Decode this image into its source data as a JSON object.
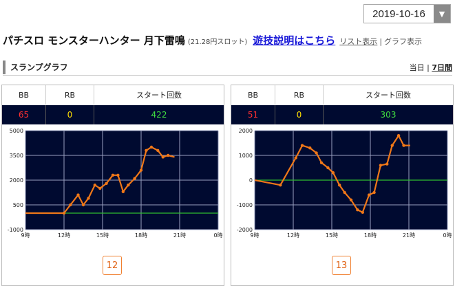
{
  "date_select": {
    "value": "2019-10-16"
  },
  "title": {
    "machine": "パチスロ モンスターハンター 月下雷鳴",
    "rate": "(21.28円スロット)",
    "help_link": "遊技説明はこちら",
    "list_view": "リスト表示",
    "separator": "|",
    "graph_view": "グラフ表示"
  },
  "section": {
    "label": "スランプグラフ",
    "today": "当日",
    "separator": "|",
    "week": "7日間"
  },
  "headers": {
    "bb": "BB",
    "rb": "RB",
    "start": "スタート回数"
  },
  "colors": {
    "plot_bg": "#000a30",
    "series": "#f07818",
    "baseline": "#2fbf2f",
    "badge": "#f08030"
  },
  "panels": [
    {
      "machine_number": "12",
      "bb": "65",
      "rb": "0",
      "start": "422",
      "chart_data": {
        "type": "line",
        "xlabel": "",
        "ylabel": "",
        "x_ticks": [
          "9時",
          "12時",
          "15時",
          "18時",
          "21時",
          "0時"
        ],
        "x_range": [
          9,
          24
        ],
        "ylim": [
          -1000,
          5000
        ],
        "y_ticks": [
          -1000,
          500,
          2000,
          3500,
          5000
        ],
        "baseline": 0,
        "grid": true,
        "series": [
          {
            "x": [
              9.0,
              12.0,
              12.5,
              13.1,
              13.5,
              13.9,
              14.4,
              14.8,
              15.3,
              15.8,
              16.2,
              16.6,
              17.0,
              17.5,
              18.0,
              18.4,
              18.8,
              19.3,
              19.7,
              20.1,
              20.6
            ],
            "y": [
              0,
              0,
              500,
              1100,
              500,
              900,
              1700,
              1500,
              1800,
              2300,
              2300,
              1300,
              1700,
              2100,
              2600,
              3800,
              4000,
              3800,
              3400,
              3500,
              3400
            ]
          }
        ]
      }
    },
    {
      "machine_number": "13",
      "bb": "51",
      "rb": "0",
      "start": "303",
      "chart_data": {
        "type": "line",
        "xlabel": "",
        "ylabel": "",
        "x_ticks": [
          "9時",
          "12時",
          "15時",
          "18時",
          "21時",
          "0時"
        ],
        "x_range": [
          9,
          24
        ],
        "ylim": [
          -2000,
          2000
        ],
        "y_ticks": [
          -2000,
          -1000,
          0,
          1000,
          2000
        ],
        "baseline": 0,
        "grid": true,
        "series": [
          {
            "x": [
              9.0,
              11.0,
              12.2,
              12.7,
              13.3,
              13.8,
              14.2,
              14.7,
              15.1,
              15.6,
              16.0,
              16.5,
              17.0,
              17.4,
              17.9,
              18.3,
              18.8,
              19.3,
              19.7,
              20.2,
              20.6,
              21.1
            ],
            "y": [
              0,
              -200,
              900,
              1400,
              1300,
              1100,
              700,
              500,
              300,
              -200,
              -500,
              -800,
              -1200,
              -1300,
              -600,
              -500,
              600,
              650,
              1400,
              1800,
              1400,
              1400
            ]
          }
        ]
      }
    }
  ]
}
